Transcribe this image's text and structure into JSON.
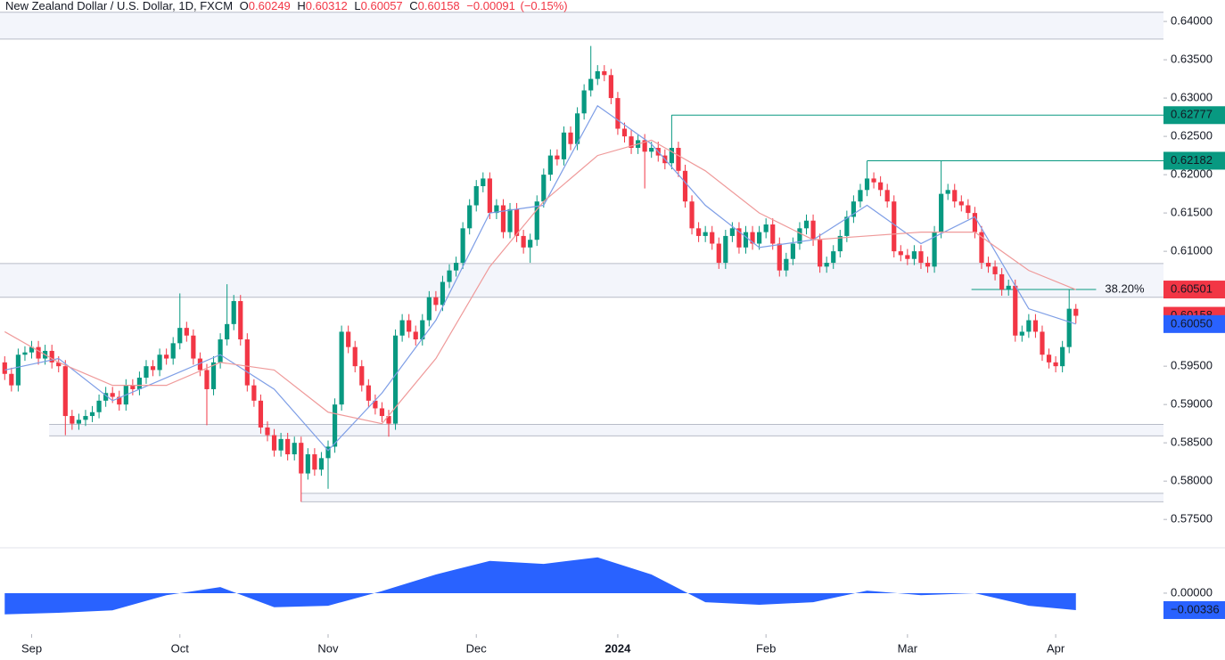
{
  "chart_data": [
    {
      "type": "candlestick",
      "title": "New Zealand Dollar / U.S. Dollar, 1D, FXCM",
      "ohlc_prefixes": [
        "O",
        "H",
        "L",
        "C"
      ],
      "change": {
        "value": -0.00091,
        "label": "−0.00091"
      },
      "change_pct": {
        "value": -0.15,
        "label": "(−0.15%)"
      },
      "up_color": "#089981",
      "down_color": "#f23645",
      "xlim": [
        -0.7,
        172
      ],
      "ylim": [
        0.5713,
        0.6428
      ],
      "yticks": [
        {
          "value": 0.64,
          "label": "0.64000"
        },
        {
          "value": 0.635,
          "label": "0.63500"
        },
        {
          "value": 0.63,
          "label": "0.63000"
        },
        {
          "value": 0.625,
          "label": "0.62500"
        },
        {
          "value": 0.62,
          "label": "0.62000"
        },
        {
          "value": 0.615,
          "label": "0.61500"
        },
        {
          "value": 0.61,
          "label": "0.61000"
        },
        {
          "value": 0.605,
          "label": "0.60500"
        },
        {
          "value": 0.6,
          "label": "0.60000"
        },
        {
          "value": 0.595,
          "label": "0.59500"
        },
        {
          "value": 0.59,
          "label": "0.59000"
        },
        {
          "value": 0.585,
          "label": "0.58500"
        },
        {
          "value": 0.58,
          "label": "0.58000"
        },
        {
          "value": 0.575,
          "label": "0.57500"
        }
      ],
      "xticks": [
        {
          "value": 4,
          "label": "Sep"
        },
        {
          "value": 26,
          "label": "Oct"
        },
        {
          "value": 48,
          "label": "Nov"
        },
        {
          "value": 70,
          "label": "Dec"
        },
        {
          "value": 91,
          "label": "2024",
          "bold": true
        },
        {
          "value": 113,
          "label": "Feb"
        },
        {
          "value": 134,
          "label": "Mar"
        },
        {
          "value": 156,
          "label": "Apr"
        }
      ],
      "open": [
        0.5955,
        0.594,
        0.5925,
        0.5965,
        0.5968,
        0.5975,
        0.596,
        0.597,
        0.5955,
        0.595,
        0.5885,
        0.5875,
        0.588,
        0.5885,
        0.589,
        0.5905,
        0.5915,
        0.591,
        0.59,
        0.5925,
        0.592,
        0.5935,
        0.595,
        0.5945,
        0.5965,
        0.596,
        0.598,
        0.6,
        0.599,
        0.596,
        0.5945,
        0.592,
        0.5955,
        0.5985,
        0.6005,
        0.6035,
        0.5985,
        0.5925,
        0.5905,
        0.587,
        0.586,
        0.584,
        0.5855,
        0.5835,
        0.585,
        0.581,
        0.5835,
        0.5815,
        0.583,
        0.5845,
        0.59,
        0.5995,
        0.5975,
        0.595,
        0.5925,
        0.5905,
        0.5895,
        0.5885,
        0.5875,
        0.599,
        0.601,
        0.5995,
        0.5985,
        0.601,
        0.604,
        0.603,
        0.606,
        0.6075,
        0.6085,
        0.613,
        0.616,
        0.6185,
        0.6195,
        0.615,
        0.616,
        0.6125,
        0.6155,
        0.612,
        0.6105,
        0.6115,
        0.6165,
        0.62,
        0.6225,
        0.622,
        0.6255,
        0.624,
        0.628,
        0.631,
        0.6325,
        0.6335,
        0.633,
        0.63,
        0.626,
        0.625,
        0.6235,
        0.6245,
        0.623,
        0.6235,
        0.6225,
        0.6215,
        0.6235,
        0.6205,
        0.6165,
        0.613,
        0.612,
        0.6125,
        0.611,
        0.6085,
        0.612,
        0.613,
        0.6105,
        0.6125,
        0.611,
        0.6125,
        0.6135,
        0.611,
        0.6075,
        0.609,
        0.611,
        0.613,
        0.614,
        0.6115,
        0.608,
        0.6085,
        0.61,
        0.612,
        0.6145,
        0.6165,
        0.618,
        0.6195,
        0.619,
        0.618,
        0.6165,
        0.61,
        0.6095,
        0.609,
        0.61,
        0.6085,
        0.608,
        0.6125,
        0.6175,
        0.618,
        0.6165,
        0.616,
        0.615,
        0.6125,
        0.6085,
        0.608,
        0.607,
        0.605,
        0.6055,
        0.599,
        0.5995,
        0.601,
        0.5995,
        0.5965,
        0.5955,
        0.595,
        0.5975,
        0.60249
      ],
      "high": [
        0.5963,
        0.5948,
        0.5973,
        0.5976,
        0.5983,
        0.5983,
        0.5978,
        0.5978,
        0.5963,
        0.5958,
        0.5893,
        0.5888,
        0.5893,
        0.5898,
        0.5913,
        0.5923,
        0.5923,
        0.5918,
        0.5933,
        0.5933,
        0.5943,
        0.5958,
        0.5958,
        0.5973,
        0.5973,
        0.5988,
        0.6045,
        0.6008,
        0.5998,
        0.5968,
        0.5953,
        0.5963,
        0.5993,
        0.6057,
        0.6043,
        0.6043,
        0.5993,
        0.5933,
        0.5913,
        0.5878,
        0.5868,
        0.5863,
        0.5863,
        0.5858,
        0.5858,
        0.5843,
        0.5843,
        0.5838,
        0.5853,
        0.5908,
        0.6003,
        0.6003,
        0.5983,
        0.5958,
        0.5933,
        0.5913,
        0.5903,
        0.5893,
        0.5998,
        0.6018,
        0.6018,
        0.6003,
        0.6018,
        0.6048,
        0.6048,
        0.6068,
        0.6083,
        0.6093,
        0.6138,
        0.6168,
        0.6193,
        0.6203,
        0.6203,
        0.6168,
        0.6168,
        0.6163,
        0.6163,
        0.6128,
        0.6123,
        0.6173,
        0.6208,
        0.6233,
        0.6233,
        0.6263,
        0.6263,
        0.6288,
        0.6318,
        0.6368,
        0.6343,
        0.6343,
        0.6338,
        0.6308,
        0.6268,
        0.6258,
        0.6253,
        0.6253,
        0.6243,
        0.6243,
        0.6233,
        0.6278,
        0.6243,
        0.6213,
        0.6173,
        0.6138,
        0.6133,
        0.6133,
        0.6118,
        0.6128,
        0.6138,
        0.6138,
        0.6133,
        0.6133,
        0.6133,
        0.6143,
        0.6143,
        0.6118,
        0.6098,
        0.6118,
        0.6138,
        0.6148,
        0.6148,
        0.6123,
        0.6093,
        0.6108,
        0.6128,
        0.6153,
        0.6173,
        0.6188,
        0.6218,
        0.6203,
        0.6198,
        0.6188,
        0.6173,
        0.6108,
        0.6103,
        0.6108,
        0.6108,
        0.6093,
        0.6133,
        0.6218,
        0.6188,
        0.6188,
        0.6173,
        0.6168,
        0.6158,
        0.6133,
        0.6093,
        0.6088,
        0.6078,
        0.6063,
        0.6063,
        0.6003,
        0.6018,
        0.6018,
        0.6003,
        0.5973,
        0.5963,
        0.5983,
        0.605,
        0.60312
      ],
      "low": [
        0.5932,
        0.5917,
        0.5917,
        0.5957,
        0.596,
        0.5952,
        0.5952,
        0.5947,
        0.5942,
        0.586,
        0.5867,
        0.5867,
        0.5872,
        0.5877,
        0.5882,
        0.5897,
        0.5902,
        0.5892,
        0.5892,
        0.5912,
        0.5912,
        0.5927,
        0.5937,
        0.5937,
        0.5952,
        0.5952,
        0.5972,
        0.5982,
        0.5952,
        0.5937,
        0.5873,
        0.5912,
        0.5947,
        0.5977,
        0.5997,
        0.5977,
        0.5917,
        0.5897,
        0.5862,
        0.5852,
        0.5832,
        0.5832,
        0.5827,
        0.5827,
        0.5773,
        0.5802,
        0.5807,
        0.5807,
        0.579,
        0.5837,
        0.5892,
        0.5967,
        0.5942,
        0.5917,
        0.5897,
        0.5887,
        0.5877,
        0.5858,
        0.5867,
        0.5982,
        0.5987,
        0.5977,
        0.5977,
        0.6002,
        0.6022,
        0.6022,
        0.6052,
        0.6067,
        0.6077,
        0.6122,
        0.6152,
        0.6177,
        0.6142,
        0.6142,
        0.6117,
        0.6117,
        0.6112,
        0.6097,
        0.6085,
        0.6107,
        0.6157,
        0.6192,
        0.6212,
        0.6212,
        0.6232,
        0.6232,
        0.6272,
        0.6302,
        0.6317,
        0.6322,
        0.6292,
        0.6252,
        0.6242,
        0.6227,
        0.6227,
        0.6182,
        0.6222,
        0.6217,
        0.6207,
        0.6207,
        0.6197,
        0.6157,
        0.6122,
        0.6112,
        0.6112,
        0.6102,
        0.6077,
        0.6077,
        0.6112,
        0.6097,
        0.6097,
        0.6102,
        0.6102,
        0.6117,
        0.6102,
        0.6067,
        0.6067,
        0.6082,
        0.6102,
        0.6122,
        0.6107,
        0.6072,
        0.6072,
        0.6077,
        0.6092,
        0.6112,
        0.6137,
        0.6157,
        0.6172,
        0.6182,
        0.6172,
        0.6157,
        0.6092,
        0.6087,
        0.6082,
        0.6082,
        0.6077,
        0.6072,
        0.6072,
        0.6117,
        0.6167,
        0.6157,
        0.6152,
        0.6142,
        0.6117,
        0.6077,
        0.6072,
        0.6062,
        0.6042,
        0.6042,
        0.5982,
        0.5982,
        0.5987,
        0.5987,
        0.5957,
        0.5947,
        0.5942,
        0.5942,
        0.5967,
        0.60057
      ],
      "close": [
        0.594,
        0.5925,
        0.5965,
        0.5968,
        0.5975,
        0.596,
        0.597,
        0.5955,
        0.595,
        0.5885,
        0.5875,
        0.588,
        0.5885,
        0.589,
        0.5905,
        0.5915,
        0.591,
        0.59,
        0.5925,
        0.592,
        0.5935,
        0.595,
        0.5945,
        0.5965,
        0.596,
        0.598,
        0.6,
        0.599,
        0.596,
        0.5945,
        0.592,
        0.5955,
        0.5985,
        0.6005,
        0.6035,
        0.5985,
        0.5925,
        0.5905,
        0.587,
        0.586,
        0.584,
        0.5855,
        0.5835,
        0.585,
        0.581,
        0.5835,
        0.5815,
        0.583,
        0.5845,
        0.59,
        0.5995,
        0.5975,
        0.595,
        0.5925,
        0.5905,
        0.5895,
        0.5885,
        0.5875,
        0.599,
        0.601,
        0.5995,
        0.5985,
        0.601,
        0.604,
        0.603,
        0.606,
        0.6075,
        0.6085,
        0.613,
        0.616,
        0.6185,
        0.6195,
        0.615,
        0.616,
        0.6125,
        0.6155,
        0.612,
        0.6105,
        0.6115,
        0.6165,
        0.62,
        0.6225,
        0.622,
        0.6255,
        0.624,
        0.628,
        0.631,
        0.6325,
        0.6335,
        0.633,
        0.63,
        0.626,
        0.625,
        0.6235,
        0.6245,
        0.623,
        0.6235,
        0.6225,
        0.6215,
        0.6235,
        0.6205,
        0.6165,
        0.613,
        0.612,
        0.6125,
        0.611,
        0.6085,
        0.612,
        0.613,
        0.6105,
        0.6125,
        0.611,
        0.6125,
        0.6135,
        0.611,
        0.6075,
        0.609,
        0.611,
        0.613,
        0.614,
        0.6115,
        0.608,
        0.6085,
        0.61,
        0.612,
        0.6145,
        0.6165,
        0.618,
        0.6195,
        0.619,
        0.618,
        0.6165,
        0.61,
        0.6095,
        0.609,
        0.61,
        0.6085,
        0.608,
        0.6125,
        0.6175,
        0.618,
        0.6165,
        0.616,
        0.615,
        0.6125,
        0.6085,
        0.608,
        0.607,
        0.605,
        0.6055,
        0.599,
        0.5995,
        0.601,
        0.5995,
        0.5965,
        0.5955,
        0.595,
        0.5975,
        0.6025,
        0.60158
      ],
      "lines": [
        {
          "color": "#7e9ee6",
          "label_color": "#2962ff",
          "last_value_label": "0.60050",
          "x": [
            0,
            8,
            16,
            24,
            32,
            40,
            48,
            56,
            64,
            72,
            80,
            88,
            96,
            104,
            112,
            120,
            128,
            136,
            144,
            152,
            159
          ],
          "values": [
            0.5945,
            0.596,
            0.5905,
            0.5935,
            0.5965,
            0.592,
            0.584,
            0.5915,
            0.601,
            0.615,
            0.616,
            0.629,
            0.624,
            0.616,
            0.6105,
            0.6115,
            0.616,
            0.611,
            0.6145,
            0.6025,
            0.6005
          ]
        },
        {
          "color": "#ef9a9a",
          "x": [
            0,
            8,
            16,
            24,
            32,
            40,
            48,
            56,
            64,
            72,
            80,
            88,
            96,
            104,
            112,
            120,
            128,
            136,
            144,
            152,
            159
          ],
          "values": [
            0.5995,
            0.5955,
            0.5925,
            0.5925,
            0.5955,
            0.5945,
            0.589,
            0.5875,
            0.596,
            0.608,
            0.6165,
            0.6225,
            0.6245,
            0.6205,
            0.615,
            0.6115,
            0.612,
            0.6125,
            0.6125,
            0.6075,
            0.605
          ]
        }
      ],
      "levels": [
        {
          "value": 0.62777,
          "start": 99,
          "color": "#089981"
        },
        {
          "value": 0.62182,
          "start": 128,
          "color": "#089981"
        }
      ],
      "fib": {
        "value": 0.60501,
        "start": 143.5,
        "end": 162,
        "ratio": {
          "value": 38.2,
          "label": "38.20%"
        },
        "color": "#089981",
        "label_color": "#f23645"
      },
      "zones": [
        {
          "top": 0.6412,
          "bottom": 0.6377
        },
        {
          "top": 0.6084,
          "bottom": 0.604
        },
        {
          "top": 0.5874,
          "bottom": 0.5859,
          "start": 6.6
        },
        {
          "top": 0.5784,
          "bottom": 0.5773,
          "start": 44
        }
      ],
      "zone_color": "#f3f5fb",
      "zone_line_color": "#b8bcc8"
    },
    {
      "type": "area",
      "color": "#2962ff",
      "ylim": [
        -0.0069,
        0.009
      ],
      "yticks": [
        {
          "value": 0,
          "label": "0.00000"
        }
      ],
      "last_value_label": "−0.00336",
      "x": [
        0,
        8,
        16,
        24,
        32,
        40,
        48,
        56,
        64,
        72,
        80,
        88,
        96,
        104,
        112,
        120,
        128,
        136,
        144,
        152,
        159
      ],
      "values": [
        -0.0042,
        -0.0039,
        -0.0034,
        -0.0004,
        0.0012,
        -0.0028,
        -0.0025,
        0.0004,
        0.0037,
        0.0064,
        0.0058,
        0.0071,
        0.0037,
        -0.0018,
        -0.0023,
        -0.0018,
        0.0005,
        -0.0004,
        0,
        -0.0025,
        -0.00336
      ]
    }
  ]
}
